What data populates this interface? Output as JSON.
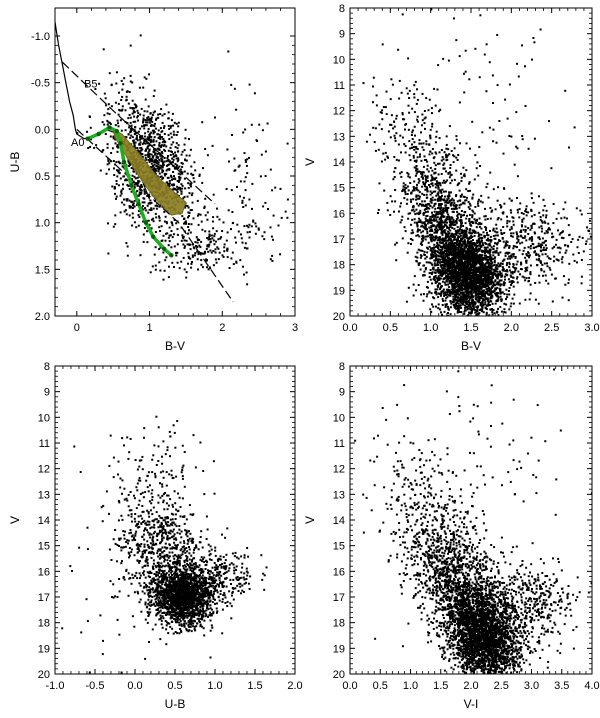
{
  "chart_data": [
    {
      "id": "ub-bv",
      "type": "scatter",
      "xlabel": "B-V",
      "ylabel": "U-B",
      "xlim": [
        -0.3,
        3.0
      ],
      "ylim": [
        2.0,
        -1.3
      ],
      "y_inverted": true,
      "x_ticks": [
        "0",
        "1",
        "2",
        "3"
      ],
      "y_ticks": [
        "-1.0",
        "-0.5",
        "0.0",
        "0.5",
        "1.0",
        "1.5",
        "2.0"
      ],
      "x_tick_values": [
        0,
        1,
        2,
        3
      ],
      "y_tick_values": [
        -1.0,
        -0.5,
        0.0,
        0.5,
        1.0,
        1.5,
        2.0
      ],
      "annotations": [
        {
          "text": "B5",
          "x": 0.1,
          "y": -0.45
        },
        {
          "text": "A0",
          "x": -0.08,
          "y": 0.18
        }
      ],
      "series": [
        {
          "kind": "intrinsic-line",
          "color": "#000000",
          "dash": false,
          "points": [
            [
              -0.33,
              -1.33
            ],
            [
              -0.3,
              -1.15
            ],
            [
              -0.25,
              -0.9
            ],
            [
              -0.2,
              -0.7
            ],
            [
              -0.15,
              -0.5
            ],
            [
              -0.1,
              -0.3
            ],
            [
              -0.05,
              -0.15
            ],
            [
              -0.02,
              0.0
            ],
            [
              0.0,
              0.05
            ],
            [
              0.1,
              0.1
            ],
            [
              0.2,
              0.08
            ],
            [
              0.3,
              0.05
            ],
            [
              0.4,
              0.0
            ],
            [
              0.5,
              0.03
            ],
            [
              0.6,
              0.1
            ],
            [
              0.7,
              0.2
            ],
            [
              0.8,
              0.35
            ],
            [
              0.9,
              0.55
            ],
            [
              1.0,
              0.75
            ]
          ]
        },
        {
          "kind": "reddening-line",
          "color": "#000000",
          "dash": true,
          "points": [
            [
              -0.2,
              -0.72
            ],
            [
              0.5,
              -0.2
            ],
            [
              1.2,
              0.3
            ],
            [
              1.9,
              0.8
            ]
          ]
        },
        {
          "kind": "reddening-line",
          "color": "#000000",
          "dash": true,
          "points": [
            [
              0.0,
              0.0
            ],
            [
              0.7,
              0.5
            ],
            [
              1.4,
              1.0
            ],
            [
              2.15,
              1.85
            ]
          ]
        },
        {
          "kind": "region",
          "color": "#8b7d22",
          "label": "",
          "points": [
            [
              0.5,
              0.0
            ],
            [
              0.62,
              0.05
            ],
            [
              0.85,
              0.25
            ],
            [
              1.1,
              0.5
            ],
            [
              1.35,
              0.68
            ],
            [
              1.5,
              0.78
            ],
            [
              1.45,
              0.9
            ],
            [
              1.3,
              0.92
            ],
            [
              1.05,
              0.72
            ],
            [
              0.85,
              0.5
            ],
            [
              0.65,
              0.25
            ],
            [
              0.52,
              0.08
            ]
          ]
        },
        {
          "kind": "green-track",
          "color": "#1fae1f",
          "points": [
            [
              0.15,
              0.1
            ],
            [
              0.3,
              0.05
            ],
            [
              0.45,
              -0.02
            ],
            [
              0.55,
              0.02
            ],
            [
              0.6,
              0.15
            ],
            [
              0.65,
              0.35
            ],
            [
              0.75,
              0.6
            ],
            [
              0.85,
              0.8
            ],
            [
              0.95,
              1.0
            ],
            [
              1.05,
              1.15
            ],
            [
              1.2,
              1.28
            ],
            [
              1.3,
              1.35
            ]
          ]
        }
      ],
      "scatter_density": [
        {
          "cx": 1.05,
          "cy": 0.3,
          "sx": 0.3,
          "sy": 0.3,
          "n": 900,
          "rot": 0.62
        },
        {
          "cx": 1.75,
          "cy": 1.25,
          "sx": 0.35,
          "sy": 0.15,
          "n": 200,
          "rot": -0.1
        },
        {
          "cx": 2.4,
          "cy": 0.6,
          "sx": 0.25,
          "sy": 0.45,
          "n": 90,
          "rot": 0.2
        },
        {
          "cx": 0.8,
          "cy": 0.65,
          "sx": 0.25,
          "sy": 0.25,
          "n": 200,
          "rot": 0.8
        }
      ]
    },
    {
      "id": "v-bv",
      "type": "scatter",
      "xlabel": "B-V",
      "ylabel": "V",
      "xlim": [
        0.0,
        3.0
      ],
      "ylim": [
        20,
        8
      ],
      "y_inverted": true,
      "x_ticks": [
        "0.0",
        "0.5",
        "1.0",
        "1.5",
        "2.0",
        "2.5",
        "3.0"
      ],
      "x_tick_values": [
        0.0,
        0.5,
        1.0,
        1.5,
        2.0,
        2.5,
        3.0
      ],
      "y_ticks": [
        "8",
        "9",
        "10",
        "11",
        "12",
        "13",
        "14",
        "15",
        "16",
        "17",
        "18",
        "19",
        "20"
      ],
      "y_tick_values": [
        8,
        9,
        10,
        11,
        12,
        13,
        14,
        15,
        16,
        17,
        18,
        19,
        20
      ],
      "scatter_density": [
        {
          "cx": 1.45,
          "cy": 18.3,
          "sx": 0.22,
          "sy": 0.9,
          "n": 2600,
          "rot": 0.25
        },
        {
          "cx": 1.1,
          "cy": 16.0,
          "sx": 0.25,
          "sy": 1.2,
          "n": 900,
          "rot": 0.3
        },
        {
          "cx": 2.2,
          "cy": 17.2,
          "sx": 0.35,
          "sy": 0.9,
          "n": 450,
          "rot": 0.0
        },
        {
          "cx": 0.7,
          "cy": 12.8,
          "sx": 0.3,
          "sy": 1.0,
          "n": 150,
          "rot": 0.3
        },
        {
          "cx": 1.5,
          "cy": 12.0,
          "sx": 0.6,
          "sy": 2.5,
          "n": 100,
          "rot": 0.0
        }
      ]
    },
    {
      "id": "v-ub",
      "type": "scatter",
      "xlabel": "U-B",
      "ylabel": "V",
      "xlim": [
        -1.0,
        2.0
      ],
      "ylim": [
        20,
        8
      ],
      "y_inverted": true,
      "x_ticks": [
        "-1.0",
        "-0.5",
        "0.0",
        "0.5",
        "1.0",
        "1.5",
        "2.0"
      ],
      "x_tick_values": [
        -1.0,
        -0.5,
        0.0,
        0.5,
        1.0,
        1.5,
        2.0
      ],
      "y_ticks": [
        "8",
        "9",
        "10",
        "11",
        "12",
        "13",
        "14",
        "15",
        "16",
        "17",
        "18",
        "19",
        "20"
      ],
      "y_tick_values": [
        8,
        9,
        10,
        11,
        12,
        13,
        14,
        15,
        16,
        17,
        18,
        19,
        20
      ],
      "scatter_density": [
        {
          "cx": 0.6,
          "cy": 17.0,
          "sx": 0.18,
          "sy": 0.55,
          "n": 1600,
          "rot": 0.0
        },
        {
          "cx": 0.3,
          "cy": 15.2,
          "sx": 0.25,
          "sy": 1.0,
          "n": 600,
          "rot": 0.15
        },
        {
          "cx": 1.0,
          "cy": 16.2,
          "sx": 0.25,
          "sy": 0.6,
          "n": 300,
          "rot": 0.0
        },
        {
          "cx": 0.2,
          "cy": 12.5,
          "sx": 0.35,
          "sy": 1.2,
          "n": 150,
          "rot": 0.0
        },
        {
          "cx": -0.4,
          "cy": 17.5,
          "sx": 0.5,
          "sy": 1.5,
          "n": 35,
          "rot": 0.0
        }
      ]
    },
    {
      "id": "v-vi",
      "type": "scatter",
      "xlabel": "V-I",
      "ylabel": "V",
      "xlim": [
        0.0,
        4.0
      ],
      "ylim": [
        20,
        8
      ],
      "y_inverted": true,
      "x_ticks": [
        "0.0",
        "0.5",
        "1.0",
        "1.5",
        "2.0",
        "2.5",
        "3.0",
        "3.5",
        "4.0"
      ],
      "x_tick_values": [
        0.0,
        0.5,
        1.0,
        1.5,
        2.0,
        2.5,
        3.0,
        3.5,
        4.0
      ],
      "y_ticks": [
        "8",
        "9",
        "10",
        "11",
        "12",
        "13",
        "14",
        "15",
        "16",
        "17",
        "18",
        "19",
        "20"
      ],
      "y_tick_values": [
        8,
        9,
        10,
        11,
        12,
        13,
        14,
        15,
        16,
        17,
        18,
        19,
        20
      ],
      "scatter_density": [
        {
          "cx": 2.2,
          "cy": 18.5,
          "sx": 0.3,
          "sy": 0.9,
          "n": 2600,
          "rot": 0.3
        },
        {
          "cx": 1.7,
          "cy": 16.3,
          "sx": 0.35,
          "sy": 1.1,
          "n": 1000,
          "rot": 0.35
        },
        {
          "cx": 2.9,
          "cy": 17.2,
          "sx": 0.4,
          "sy": 0.9,
          "n": 450,
          "rot": 0.0
        },
        {
          "cx": 1.2,
          "cy": 13.5,
          "sx": 0.4,
          "sy": 1.2,
          "n": 250,
          "rot": 0.3
        },
        {
          "cx": 2.0,
          "cy": 11.5,
          "sx": 0.8,
          "sy": 2.0,
          "n": 90,
          "rot": 0.0
        }
      ]
    }
  ]
}
